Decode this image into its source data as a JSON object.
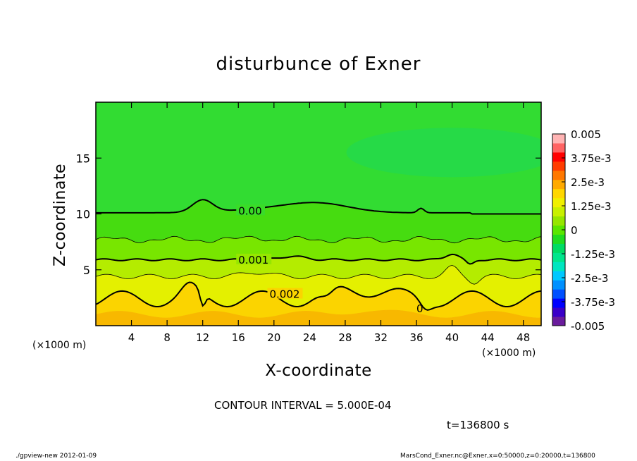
{
  "chart_data": {
    "type": "heatmap",
    "title": "disturbunce of Exner",
    "xlabel": "X-coordinate",
    "ylabel": "Z-coordinate",
    "x_unit": "(×1000 m)",
    "xlim": [
      0,
      50
    ],
    "ylim": [
      0,
      20
    ],
    "x_ticks": [
      4,
      8,
      12,
      16,
      20,
      24,
      28,
      32,
      36,
      40,
      44,
      48
    ],
    "y_ticks": [
      5,
      10,
      15
    ],
    "colorbar": {
      "ticks": [
        "0.005",
        "3.75e-3",
        "2.5e-3",
        "1.25e-3",
        "0",
        "-1.25e-3",
        "-2.5e-3",
        "-3.75e-3",
        "-0.005"
      ],
      "range": [
        -0.005,
        0.005
      ],
      "colors": [
        "#6a1c9c",
        "#3a00c8",
        "#0000ff",
        "#0050ff",
        "#0090ff",
        "#00c8ff",
        "#00e6c0",
        "#00e68c",
        "#00dc64",
        "#20dc20",
        "#5ae600",
        "#96e600",
        "#c8f000",
        "#f0f000",
        "#ffd700",
        "#ffaa00",
        "#ff7800",
        "#ff3c00",
        "#ff0000",
        "#ff6464",
        "#ffb4b4"
      ]
    },
    "contour_interval": "5.000E-04",
    "contour_labels": [
      "0.00",
      "0.001",
      "0.002",
      "0"
    ],
    "time": "t=136800 s",
    "field_description": "Exner disturbance decreasing with height: ~0.0024 near surface, 0.002 contour at z≈2–3, 0.001 contour at z≈6, zero contour at z≈10–11.5, slightly negative above"
  },
  "annotations": {
    "contour_interval": "CONTOUR INTERVAL = 5.000E-04",
    "time_label": "t=136800 s",
    "footer_left": "./gpview-new   2012-01-09",
    "footer_right": "MarsCond_Exner.nc@Exner,x=0:50000,z=0:20000,t=136800"
  }
}
